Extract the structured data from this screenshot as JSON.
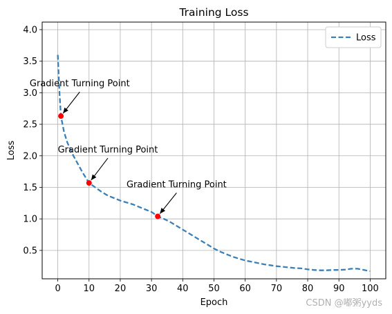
{
  "chart_data": {
    "type": "line",
    "title": "Training Loss",
    "xlabel": "Epoch",
    "ylabel": "Loss",
    "xlim": [
      -5,
      105
    ],
    "ylim": [
      0.05,
      4.12
    ],
    "xticks": [
      0,
      10,
      20,
      30,
      40,
      50,
      60,
      70,
      80,
      90,
      100
    ],
    "yticks": [
      0.5,
      1.0,
      1.5,
      2.0,
      2.5,
      3.0,
      3.5,
      4.0
    ],
    "ytick_labels": [
      "0.5",
      "1.0",
      "1.5",
      "2.0",
      "2.5",
      "3.0",
      "3.5",
      "4.0"
    ],
    "grid": true,
    "legend_position": "top-right",
    "series": [
      {
        "name": "Loss",
        "style": "dashed",
        "color": "#3a7fb7",
        "x": [
          0,
          0.5,
          1,
          2,
          3,
          4,
          5,
          6,
          8,
          10,
          12,
          14,
          16,
          18,
          20,
          22,
          24,
          26,
          28,
          30,
          32,
          34,
          36,
          38,
          40,
          42,
          44,
          46,
          48,
          50,
          52,
          54,
          56,
          58,
          60,
          62,
          64,
          66,
          68,
          70,
          72,
          74,
          76,
          78,
          80,
          82,
          84,
          86,
          88,
          90,
          92,
          94,
          96,
          98,
          100
        ],
        "y": [
          3.6,
          3.05,
          2.63,
          2.38,
          2.22,
          2.1,
          2.0,
          1.91,
          1.73,
          1.57,
          1.5,
          1.43,
          1.37,
          1.33,
          1.29,
          1.26,
          1.23,
          1.19,
          1.15,
          1.11,
          1.04,
          1.0,
          0.95,
          0.89,
          0.83,
          0.77,
          0.71,
          0.65,
          0.59,
          0.53,
          0.48,
          0.44,
          0.4,
          0.37,
          0.34,
          0.32,
          0.3,
          0.28,
          0.265,
          0.25,
          0.24,
          0.23,
          0.22,
          0.215,
          0.2,
          0.19,
          0.185,
          0.185,
          0.19,
          0.19,
          0.195,
          0.21,
          0.21,
          0.19,
          0.17
        ]
      }
    ],
    "points": [
      {
        "x": 1,
        "y": 2.63,
        "color": "#ff0000"
      },
      {
        "x": 10,
        "y": 1.57,
        "color": "#ff0000"
      },
      {
        "x": 32,
        "y": 1.04,
        "color": "#ff0000"
      }
    ],
    "annotations": [
      {
        "text": "Gradient Turning Point",
        "x": 1,
        "y": 2.63,
        "text_x": -9,
        "text_y": 3.1
      },
      {
        "text": "Gradient Turning Point",
        "x": 10,
        "y": 1.57,
        "text_x": 0,
        "text_y": 2.05
      },
      {
        "text": "Gradient Turning Point",
        "x": 32,
        "y": 1.04,
        "text_x": 22,
        "text_y": 1.5
      }
    ]
  },
  "watermark": "CSDN @嘟粥yyds"
}
